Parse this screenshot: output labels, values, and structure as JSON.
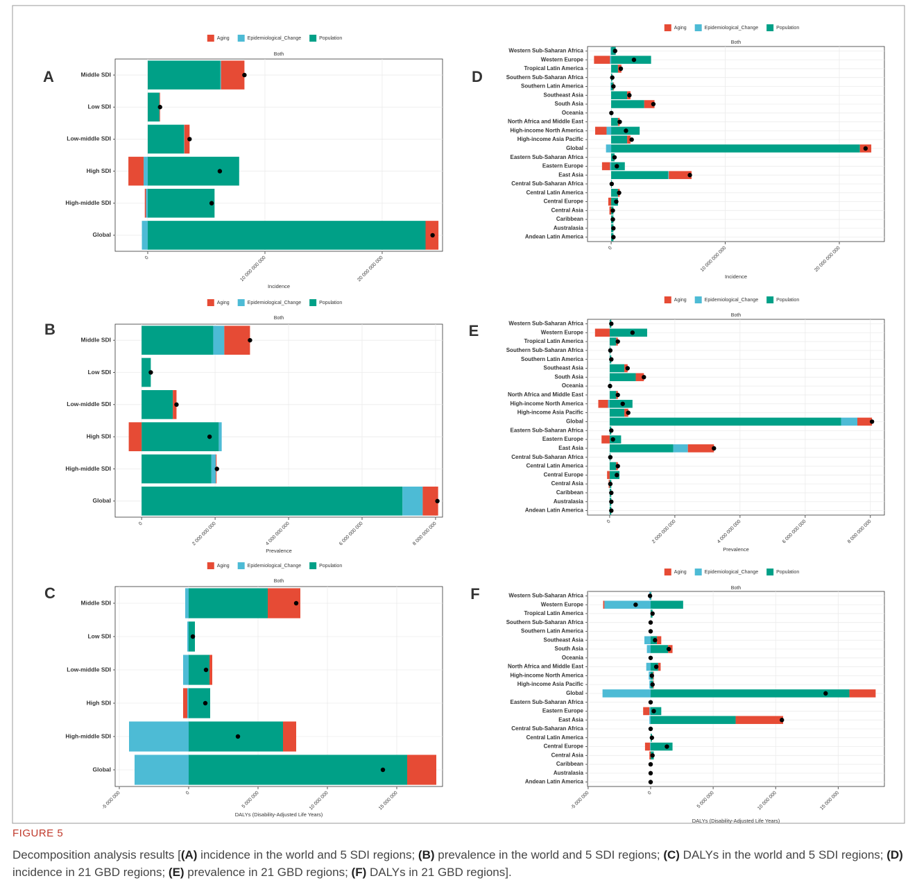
{
  "chart_data": [
    {
      "type": "bar",
      "panel": "A",
      "title": "Both",
      "xlabel": "Incidence",
      "legend": "top",
      "grid": true,
      "categories": [
        "Middle SDI",
        "Low SDI",
        "Low-middle SDI",
        "High SDI",
        "High-middle SDI",
        "Global"
      ],
      "series": [
        {
          "name": "Aging",
          "color": "#e64b35",
          "values": [
            2000000000.0,
            50000000.0,
            450000000.0,
            -1300000000.0,
            -100000000.0,
            1100000000.0
          ]
        },
        {
          "name": "Epidemiological_Change",
          "color": "#4dbbd5",
          "values": [
            50000000.0,
            0,
            20000000.0,
            -350000000.0,
            -150000000.0,
            -500000000.0
          ]
        },
        {
          "name": "Population",
          "color": "#00a087",
          "values": [
            6200000000.0,
            1000000000.0,
            3100000000.0,
            7800000000.0,
            5700000000.0,
            23700000000.0
          ]
        }
      ],
      "totals": [
        8250000000.0,
        1050000000.0,
        3570000000.0,
        6150000000.0,
        5450000000.0,
        24300000000.0
      ],
      "xlim": [
        -2780000000.0,
        25150000000.0
      ],
      "xticks": [
        0,
        {
          "value": 10000000000.0,
          "label": "10 000 000 000"
        },
        {
          "value": 20000000000.0,
          "label": "20 000 000 000"
        }
      ]
    },
    {
      "type": "bar",
      "panel": "B",
      "title": "Both",
      "xlabel": "Prevalence",
      "legend": "top",
      "grid": true,
      "categories": [
        "Middle SDI",
        "Low SDI",
        "Low-middle SDI",
        "High SDI",
        "High-middle SDI",
        "Global"
      ],
      "series": [
        {
          "name": "Aging",
          "color": "#e64b35",
          "values": [
            700000000.0,
            0,
            100000000.0,
            -350000000.0,
            20000000.0,
            420000000.0
          ]
        },
        {
          "name": "Epidemiological_Change",
          "color": "#4dbbd5",
          "values": [
            300000000.0,
            0,
            0,
            80000000.0,
            120000000.0,
            550000000.0
          ]
        },
        {
          "name": "Population",
          "color": "#00a087",
          "values": [
            1950000000.0,
            250000000.0,
            850000000.0,
            2100000000.0,
            1900000000.0,
            7100000000.0
          ]
        }
      ],
      "totals": [
        2950000000.0,
        250000000.0,
        950000000.0,
        1850000000.0,
        2050000000.0,
        8050000000.0
      ],
      "xlim": [
        -720000000.0,
        8190000000.0
      ],
      "xticks": [
        0,
        {
          "value": 2000000000.0,
          "label": "2 000 000 000"
        },
        {
          "value": 4000000000.0,
          "label": "4 000 000 000"
        },
        {
          "value": 6000000000.0,
          "label": "6 000 000 000"
        },
        {
          "value": 8000000000.0,
          "label": "8 000 000 000"
        }
      ]
    },
    {
      "type": "bar",
      "panel": "C",
      "title": "Both",
      "xlabel": "DALYs (Disability-Adjusted Life Years)",
      "legend": "top",
      "grid": true,
      "categories": [
        "Middle SDI",
        "Low SDI",
        "Low-middle SDI",
        "High SDI",
        "High-middle SDI",
        "Global"
      ],
      "series": [
        {
          "name": "Aging",
          "color": "#e64b35",
          "values": [
            2350000.0,
            0,
            200000.0,
            -300000.0,
            950000.0,
            2100000.0
          ]
        },
        {
          "name": "Epidemiological_Change",
          "color": "#4dbbd5",
          "values": [
            -250000.0,
            -100000.0,
            -400000.0,
            -100000.0,
            -4300000.0,
            -3900000.0
          ]
        },
        {
          "name": "Population",
          "color": "#00a087",
          "values": [
            5700000.0,
            450000.0,
            1500000.0,
            1550000.0,
            6800000.0,
            15750000.0
          ]
        }
      ],
      "totals": [
        7750000.0,
        300000.0,
        1250000.0,
        1200000.0,
        3550000.0,
        14000000.0
      ],
      "xlim": [
        -5300000.0,
        18300000.0
      ],
      "xticks": [
        {
          "value": -5000000.0,
          "label": "-5 000 000"
        },
        0,
        {
          "value": 5000000.0,
          "label": "5 000 000"
        },
        {
          "value": 10000000.0,
          "label": "10 000 000"
        },
        {
          "value": 15000000.0,
          "label": "15 000 000"
        }
      ]
    },
    {
      "type": "bar",
      "panel": "D",
      "title": "Both",
      "xlabel": "Incidence",
      "legend": "top",
      "grid": true,
      "categories": [
        "Western Sub-Saharan Africa",
        "Western Europe",
        "Tropical Latin America",
        "Southern Sub-Saharan Africa",
        "Southern Latin America",
        "Southeast Asia",
        "South Asia",
        "Oceania",
        "North Africa and Middle East",
        "High-income North America",
        "High-income Asia Pacific",
        "Global",
        "Eastern Sub-Saharan Africa",
        "Eastern Europe",
        "East Asia",
        "Central Sub-Saharan Africa",
        "Central Latin America",
        "Central Europe",
        "Central Asia",
        "Caribbean",
        "Australasia",
        "Andean Latin America"
      ],
      "series": [
        {
          "name": "Aging",
          "color": "#e64b35",
          "values": [
            0,
            -1400000000.0,
            300000000.0,
            0,
            50000000.0,
            300000000.0,
            900000000.0,
            0,
            150000000.0,
            -1000000000.0,
            300000000.0,
            1000000000.0,
            0,
            -700000000.0,
            2000000000.0,
            0,
            150000000.0,
            -250000000.0,
            -150000000.0,
            0,
            0,
            0
          ]
        },
        {
          "name": "Epidemiological_Change",
          "color": "#4dbbd5",
          "values": [
            -50000000.0,
            -100000000.0,
            0,
            0,
            -50000000.0,
            0,
            0,
            0,
            0,
            -400000000.0,
            0,
            -450000000.0,
            0,
            -100000000.0,
            50000000.0,
            0,
            0,
            0,
            0,
            0,
            0,
            0
          ]
        },
        {
          "name": "Population",
          "color": "#00a087",
          "values": [
            400000000.0,
            3500000000.0,
            600000000.0,
            100000000.0,
            200000000.0,
            1400000000.0,
            2900000000.0,
            20000000.0,
            600000000.0,
            2500000000.0,
            1400000000.0,
            21800000000.0,
            300000000.0,
            1200000000.0,
            5000000000.0,
            50000000.0,
            600000000.0,
            600000000.0,
            200000000.0,
            200000000.0,
            200000000.0,
            200000000.0
          ]
        }
      ],
      "totals": [
        350000000.0,
        2000000000.0,
        850000000.0,
        100000000.0,
        200000000.0,
        1600000000.0,
        3700000000.0,
        20000000.0,
        750000000.0,
        1300000000.0,
        1800000000.0,
        22300000000.0,
        300000000.0,
        500000000.0,
        6900000000.0,
        50000000.0,
        700000000.0,
        450000000.0,
        150000000.0,
        150000000.0,
        200000000.0,
        200000000.0
      ],
      "xlim": [
        -2070000000.0,
        23950000000.0
      ],
      "xticks": [
        0,
        {
          "value": 10000000000.0,
          "label": "10 000 000 000"
        },
        {
          "value": 20000000000.0,
          "label": "20 000 000 000"
        }
      ]
    },
    {
      "type": "bar",
      "panel": "E",
      "title": "Both",
      "xlabel": "Prevalence",
      "legend": "top",
      "grid": true,
      "categories": [
        "Western Sub-Saharan Africa",
        "Western Europe",
        "Tropical Latin America",
        "Southern Sub-Saharan Africa",
        "Southern Latin America",
        "Southeast Asia",
        "South Asia",
        "Oceania",
        "North Africa and Middle East",
        "High-income North America",
        "High-income Asia Pacific",
        "Global",
        "Eastern Sub-Saharan Africa",
        "Eastern Europe",
        "East Asia",
        "Central Sub-Saharan Africa",
        "Central Latin America",
        "Central Europe",
        "Central Asia",
        "Caribbean",
        "Australasia",
        "Andean Latin America"
      ],
      "series": [
        {
          "name": "Aging",
          "color": "#e64b35",
          "values": [
            0,
            -450000000.0,
            50000000.0,
            0,
            0,
            100000000.0,
            250000000.0,
            0,
            50000000.0,
            -300000000.0,
            120000000.0,
            450000000.0,
            0,
            -250000000.0,
            800000000.0,
            0,
            50000000.0,
            -80000000.0,
            -30000000.0,
            0,
            0,
            0
          ]
        },
        {
          "name": "Epidemiological_Change",
          "color": "#4dbbd5",
          "values": [
            0,
            0,
            0,
            0,
            0,
            0,
            0,
            0,
            0,
            -50000000.0,
            0,
            500000000.0,
            0,
            0,
            450000000.0,
            0,
            0,
            0,
            0,
            0,
            0,
            0
          ]
        },
        {
          "name": "Population",
          "color": "#00a087",
          "values": [
            50000000.0,
            1150000000.0,
            200000000.0,
            20000000.0,
            50000000.0,
            450000000.0,
            800000000.0,
            10000000.0,
            200000000.0,
            700000000.0,
            450000000.0,
            7100000000.0,
            50000000.0,
            350000000.0,
            1950000000.0,
            20000000.0,
            200000000.0,
            300000000.0,
            50000000.0,
            50000000.0,
            50000000.0,
            50000000.0
          ]
        }
      ],
      "totals": [
        50000000.0,
        700000000.0,
        250000000.0,
        20000000.0,
        50000000.0,
        550000000.0,
        1050000000.0,
        10000000.0,
        250000000.0,
        400000000.0,
        570000000.0,
        8050000000.0,
        50000000.0,
        100000000.0,
        3200000000.0,
        20000000.0,
        250000000.0,
        220000000.0,
        20000000.0,
        50000000.0,
        50000000.0,
        50000000.0
      ],
      "xlim": [
        -680000000.0,
        8430000000.0
      ],
      "xticks": [
        0,
        {
          "value": 2000000000.0,
          "label": "2 000 000 000"
        },
        {
          "value": 4000000000.0,
          "label": "4 000 000 000"
        },
        {
          "value": 6000000000.0,
          "label": "6 000 000 000"
        },
        {
          "value": 8000000000.0,
          "label": "8 000 000 000"
        }
      ]
    },
    {
      "type": "bar",
      "panel": "F",
      "title": "Both",
      "xlabel": "DALYs (Disability-Adjusted Life Years)",
      "legend": "top",
      "grid": true,
      "categories": [
        "Western Sub-Saharan Africa",
        "Western Europe",
        "Tropical Latin America",
        "Southern Sub-Saharan Africa",
        "Southern Latin America",
        "Southeast Asia",
        "South Asia",
        "Oceania",
        "North Africa and Middle East",
        "High-income North America",
        "High-income Asia Pacific",
        "Global",
        "Eastern Sub-Saharan Africa",
        "Eastern Europe",
        "East Asia",
        "Central Sub-Saharan Africa",
        "Central Latin America",
        "Central Europe",
        "Central Asia",
        "Caribbean",
        "Australasia",
        "Andean Latin America"
      ],
      "series": [
        {
          "name": "Aging",
          "color": "#e64b35",
          "values": [
            0,
            -100000.0,
            0,
            0,
            0,
            350000.0,
            350000.0,
            0,
            200000.0,
            50000.0,
            50000.0,
            2100000.0,
            0,
            -500000.0,
            3800000.0,
            0,
            0,
            -400000.0,
            -100000.0,
            0,
            0,
            0
          ]
        },
        {
          "name": "Epidemiological_Change",
          "color": "#4dbbd5",
          "values": [
            -100000.0,
            -3700000.0,
            0,
            0,
            0,
            -500000.0,
            -300000.0,
            0,
            -350000.0,
            -150000.0,
            -100000.0,
            -3850000.0,
            0,
            -100000.0,
            -100000.0,
            0,
            0,
            -50000.0,
            0,
            0,
            0,
            0
          ]
        },
        {
          "name": "Population",
          "color": "#00a087",
          "values": [
            50000.0,
            2600000.0,
            150000.0,
            0,
            0,
            500000.0,
            1400000.0,
            0,
            600000.0,
            200000.0,
            200000.0,
            15900000.0,
            0,
            850000.0,
            6800000.0,
            0,
            100000.0,
            1750000.0,
            250000.0,
            0,
            0,
            0
          ]
        }
      ],
      "totals": [
        -50000.0,
        -1200000.0,
        150000.0,
        0,
        0,
        350000.0,
        1450000.0,
        0,
        450000.0,
        100000.0,
        150000.0,
        14000000.0,
        0,
        250000.0,
        10500000.0,
        0,
        100000.0,
        1300000.0,
        150000.0,
        0,
        0,
        0
      ],
      "xlim": [
        -5050000.0,
        18700000.0
      ],
      "xticks": [
        {
          "value": -5000000.0,
          "label": "-5 000 000"
        },
        0,
        {
          "value": 5000000.0,
          "label": "5 000 000"
        },
        {
          "value": 10000000.0,
          "label": "10 000 000"
        },
        {
          "value": 15000000.0,
          "label": "15 000 000"
        }
      ]
    }
  ],
  "caption": {
    "label": "FIGURE 5",
    "parts": [
      {
        "text": "Decomposition analysis results [",
        "bold": false
      },
      {
        "text": "(A)",
        "bold": true
      },
      {
        "text": " incidence in the world and 5 SDI regions; ",
        "bold": false
      },
      {
        "text": "(B)",
        "bold": true
      },
      {
        "text": " prevalence in the world and 5 SDI regions; ",
        "bold": false
      },
      {
        "text": "(C)",
        "bold": true
      },
      {
        "text": " DALYs in the world and 5 SDI regions; ",
        "bold": false
      },
      {
        "text": "(D)",
        "bold": true
      },
      {
        "text": " incidence in 21 GBD regions; ",
        "bold": false
      },
      {
        "text": "(E)",
        "bold": true
      },
      {
        "text": " prevalence in 21 GBD regions; ",
        "bold": false
      },
      {
        "text": "(F)",
        "bold": true
      },
      {
        "text": " DALYs in 21 GBD regions].",
        "bold": false
      }
    ]
  }
}
